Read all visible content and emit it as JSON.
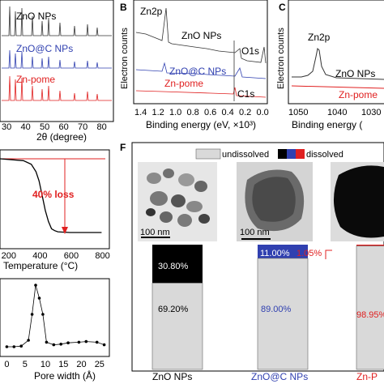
{
  "panel_letters": {
    "B": "B",
    "C": "C",
    "F": "F"
  },
  "colors": {
    "zno": "#333333",
    "znoc": "#3040b0",
    "zn_pome": "#e02020",
    "loss": "#e02020",
    "undissolved": "#d9d9d9"
  },
  "panelA": {
    "xlabel": "2θ (degree)",
    "ticks": [
      "30",
      "40",
      "50",
      "60",
      "70",
      "80"
    ],
    "labels": {
      "zno": "ZnO NPs",
      "znoc": "ZnO@C NPs",
      "pome": "Zn-pome"
    }
  },
  "panelB": {
    "xlabel": "Binding energy (eV, ×10³)",
    "ylabel": "Electron counts",
    "ticks": [
      "1.4",
      "1.2",
      "1.0",
      "0.8",
      "0.6",
      "0.4",
      "0.2",
      "0.0"
    ],
    "labels": {
      "zn2p": "Zn2p",
      "zno": "ZnO NPs",
      "o1s": "O1s",
      "znoc": "ZnO@C NPs",
      "pome": "Zn-pome",
      "c1s": "C1s"
    }
  },
  "panelC": {
    "xlabel": "Binding energy (",
    "ylabel": "Electron counts",
    "ticks": [
      "1050",
      "1040",
      "1030"
    ],
    "labels": {
      "zn2p": "Zn2p",
      "zno": "ZnO NPs",
      "pome": "Zn-pome"
    }
  },
  "panelD": {
    "xlabel": "Temperature (°C)",
    "ticks": [
      "200",
      "400",
      "600",
      "800"
    ],
    "loss": "40%  loss"
  },
  "panelE": {
    "xlabel": "Pore width (Å)",
    "ticks": [
      "0",
      "5",
      "10",
      "15",
      "20",
      "25"
    ]
  },
  "panelF": {
    "legend": {
      "undissolved": "undissolved",
      "dissolved": "dissolved"
    },
    "scalebars": [
      "100 nm",
      "100 nm"
    ],
    "names": [
      "ZnO NPs",
      "ZnO@C NPs",
      "Zn-P"
    ],
    "pct": {
      "zno_dissolved": "30.80%",
      "zno_undissolved": "69.20%",
      "znoc_dissolved": "11.00%",
      "znoc_undissolved": "89.00%",
      "pome_dissolved": "1.05%",
      "pome_undissolved": "98.95%"
    }
  },
  "chart_data": [
    {
      "type": "line",
      "panel": "D",
      "xlabel": "Temperature (°C)",
      "ylabel": "",
      "xlim": [
        150,
        850
      ],
      "x": [
        150,
        300,
        350,
        380,
        400,
        420,
        440,
        460,
        480,
        500,
        520,
        550,
        600,
        700,
        800
      ],
      "y": [
        100,
        99,
        97,
        93,
        88,
        80,
        72,
        66,
        62,
        61,
        60.4,
        60.2,
        60,
        60,
        60
      ],
      "annotations": [
        "40%  loss"
      ]
    },
    {
      "type": "line",
      "panel": "E",
      "xlabel": "Pore width (Å)",
      "ylabel": "",
      "xlim": [
        -1,
        28
      ],
      "x": [
        0,
        2,
        4,
        6,
        7,
        8,
        9,
        10,
        11,
        13,
        15,
        17,
        20,
        22,
        25,
        27
      ],
      "y": [
        0.05,
        0.05,
        0.06,
        0.15,
        0.55,
        1.0,
        0.8,
        0.55,
        0.12,
        0.08,
        0.09,
        0.11,
        0.12,
        0.13,
        0.12,
        0.08
      ]
    },
    {
      "type": "bar",
      "panel": "F",
      "stacked": true,
      "categories": [
        "ZnO NPs",
        "ZnO@C NPs",
        "Zn-pome"
      ],
      "series": [
        {
          "name": "undissolved",
          "values": [
            69.2,
            89.0,
            98.95
          ]
        },
        {
          "name": "dissolved",
          "values": [
            30.8,
            11.0,
            1.05
          ]
        }
      ],
      "ylim": [
        0,
        100
      ]
    }
  ]
}
